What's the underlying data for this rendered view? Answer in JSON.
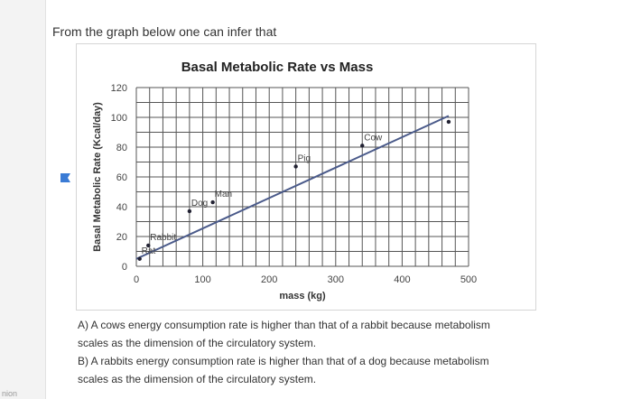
{
  "question": {
    "prompt": "From the graph below one can infer that",
    "side_footer": "nion"
  },
  "options": [
    {
      "label": "A) A cows energy consumption rate is higher than that of a rabbit because metabolism",
      "continuation": "scales as the dimension of the circulatory system."
    },
    {
      "label": "B) A rabbits energy consumption rate is higher than that of a dog because metabolism",
      "continuation": "scales as the dimension of the circulatory system."
    }
  ],
  "colors": {
    "line": "#4a5a8a",
    "grid": "#555555",
    "axis_text": "#444444"
  },
  "chart_data": {
    "type": "line",
    "title": "Basal Metabolic Rate vs Mass",
    "xlabel": "mass (kg)",
    "ylabel": "Basal Metabolic Rate (Kcal/day)",
    "xlim": [
      0,
      500
    ],
    "ylim": [
      0,
      120
    ],
    "x_ticks": [
      0,
      100,
      200,
      300,
      400,
      500
    ],
    "y_ticks": [
      0,
      20,
      40,
      60,
      80,
      100,
      120
    ],
    "grid": true,
    "series": [
      {
        "name": "",
        "points": [
          {
            "x": 5,
            "y": 5,
            "label": "Rat"
          },
          {
            "x": 18,
            "y": 14,
            "label": "Rabbit"
          },
          {
            "x": 80,
            "y": 37,
            "label": "Dog"
          },
          {
            "x": 115,
            "y": 43,
            "label": "Man"
          },
          {
            "x": 240,
            "y": 67,
            "label": "Pig"
          },
          {
            "x": 340,
            "y": 81,
            "label": "Cow"
          },
          {
            "x": 470,
            "y": 97,
            "label": ""
          }
        ],
        "trend_from": {
          "x": 0,
          "y": 5
        },
        "trend_to": {
          "x": 470,
          "y": 101
        }
      }
    ]
  }
}
